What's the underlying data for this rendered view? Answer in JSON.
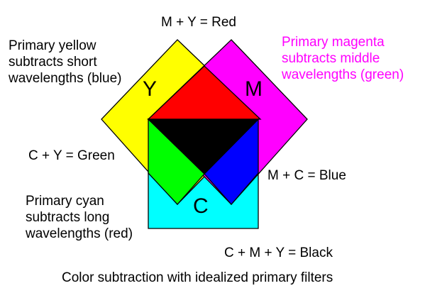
{
  "colors": {
    "yellow": "#ffff00",
    "magenta": "#ff00ff",
    "cyan": "#00ffff",
    "red": "#ff0000",
    "green": "#00ff00",
    "blue": "#0000ff",
    "black": "#000000",
    "magenta_text": "#ff00ff"
  },
  "labels": {
    "top": "M + Y = Red",
    "yellow_note": [
      "Primary yellow",
      "subtracts short",
      "wavelengths (blue)"
    ],
    "magenta_note": [
      "Primary magenta",
      "subtracts middle",
      "wavelengths (green)"
    ],
    "cy": "C + Y = Green",
    "mc": "M + C = Blue",
    "cyan_note": [
      "Primary cyan",
      "subtracts long",
      "wavelengths (red)"
    ],
    "black": "C + M + Y = Black",
    "caption": "Color subtraction with idealized primary filters"
  },
  "filters": {
    "yellow": "Y",
    "magenta": "M",
    "cyan": "C"
  }
}
